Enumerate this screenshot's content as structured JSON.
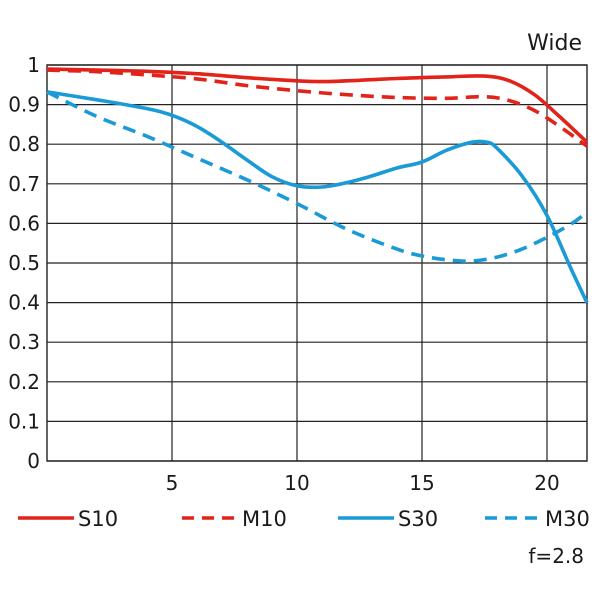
{
  "chart_data": {
    "type": "line",
    "title": "Wide",
    "note": "f=2.8",
    "xlim": [
      0,
      21.6
    ],
    "ylim": [
      0,
      1
    ],
    "x_ticks": [
      5,
      10,
      15,
      20
    ],
    "y_ticks": [
      0,
      0.1,
      0.2,
      0.3,
      0.4,
      0.5,
      0.6,
      0.7,
      0.8,
      0.9,
      1
    ],
    "y_tick_labels": [
      "0",
      "0.1",
      "0.2",
      "0.3",
      "0.4",
      "0.5",
      "0.6",
      "0.7",
      "0.8",
      "0.9",
      "1"
    ],
    "grid": true,
    "legend_position": "bottom",
    "series": [
      {
        "name": "S10",
        "color": "#e2231a",
        "dashed": false,
        "x": [
          0,
          2,
          4,
          6,
          8,
          10,
          11,
          12,
          14,
          16,
          17.5,
          18.5,
          19.5,
          20.5,
          21.6
        ],
        "y": [
          0.99,
          0.987,
          0.984,
          0.978,
          0.968,
          0.96,
          0.958,
          0.96,
          0.966,
          0.97,
          0.972,
          0.96,
          0.925,
          0.87,
          0.805
        ]
      },
      {
        "name": "M10",
        "color": "#e2231a",
        "dashed": true,
        "x": [
          0,
          2,
          4,
          6,
          8,
          10,
          12,
          14,
          16,
          17.5,
          18.5,
          19.5,
          20.5,
          21.6
        ],
        "y": [
          0.987,
          0.983,
          0.975,
          0.965,
          0.948,
          0.935,
          0.925,
          0.918,
          0.916,
          0.92,
          0.91,
          0.885,
          0.845,
          0.795
        ]
      },
      {
        "name": "S30",
        "color": "#1a9ad6",
        "dashed": false,
        "x": [
          0,
          2,
          4,
          5,
          6,
          7,
          8,
          9,
          10,
          11,
          12,
          13,
          14,
          15,
          16,
          17,
          17.6,
          18,
          19,
          20,
          21,
          21.6
        ],
        "y": [
          0.932,
          0.912,
          0.89,
          0.873,
          0.845,
          0.805,
          0.76,
          0.718,
          0.695,
          0.692,
          0.703,
          0.72,
          0.74,
          0.755,
          0.785,
          0.805,
          0.805,
          0.79,
          0.72,
          0.62,
          0.48,
          0.4
        ]
      },
      {
        "name": "M30",
        "color": "#1a9ad6",
        "dashed": true,
        "x": [
          0,
          2,
          4,
          6,
          8,
          10,
          12,
          14,
          15,
          16,
          17,
          18,
          19,
          20,
          21,
          21.6
        ],
        "y": [
          0.932,
          0.87,
          0.82,
          0.765,
          0.71,
          0.65,
          0.585,
          0.535,
          0.518,
          0.508,
          0.505,
          0.515,
          0.535,
          0.565,
          0.6,
          0.628
        ]
      }
    ]
  }
}
